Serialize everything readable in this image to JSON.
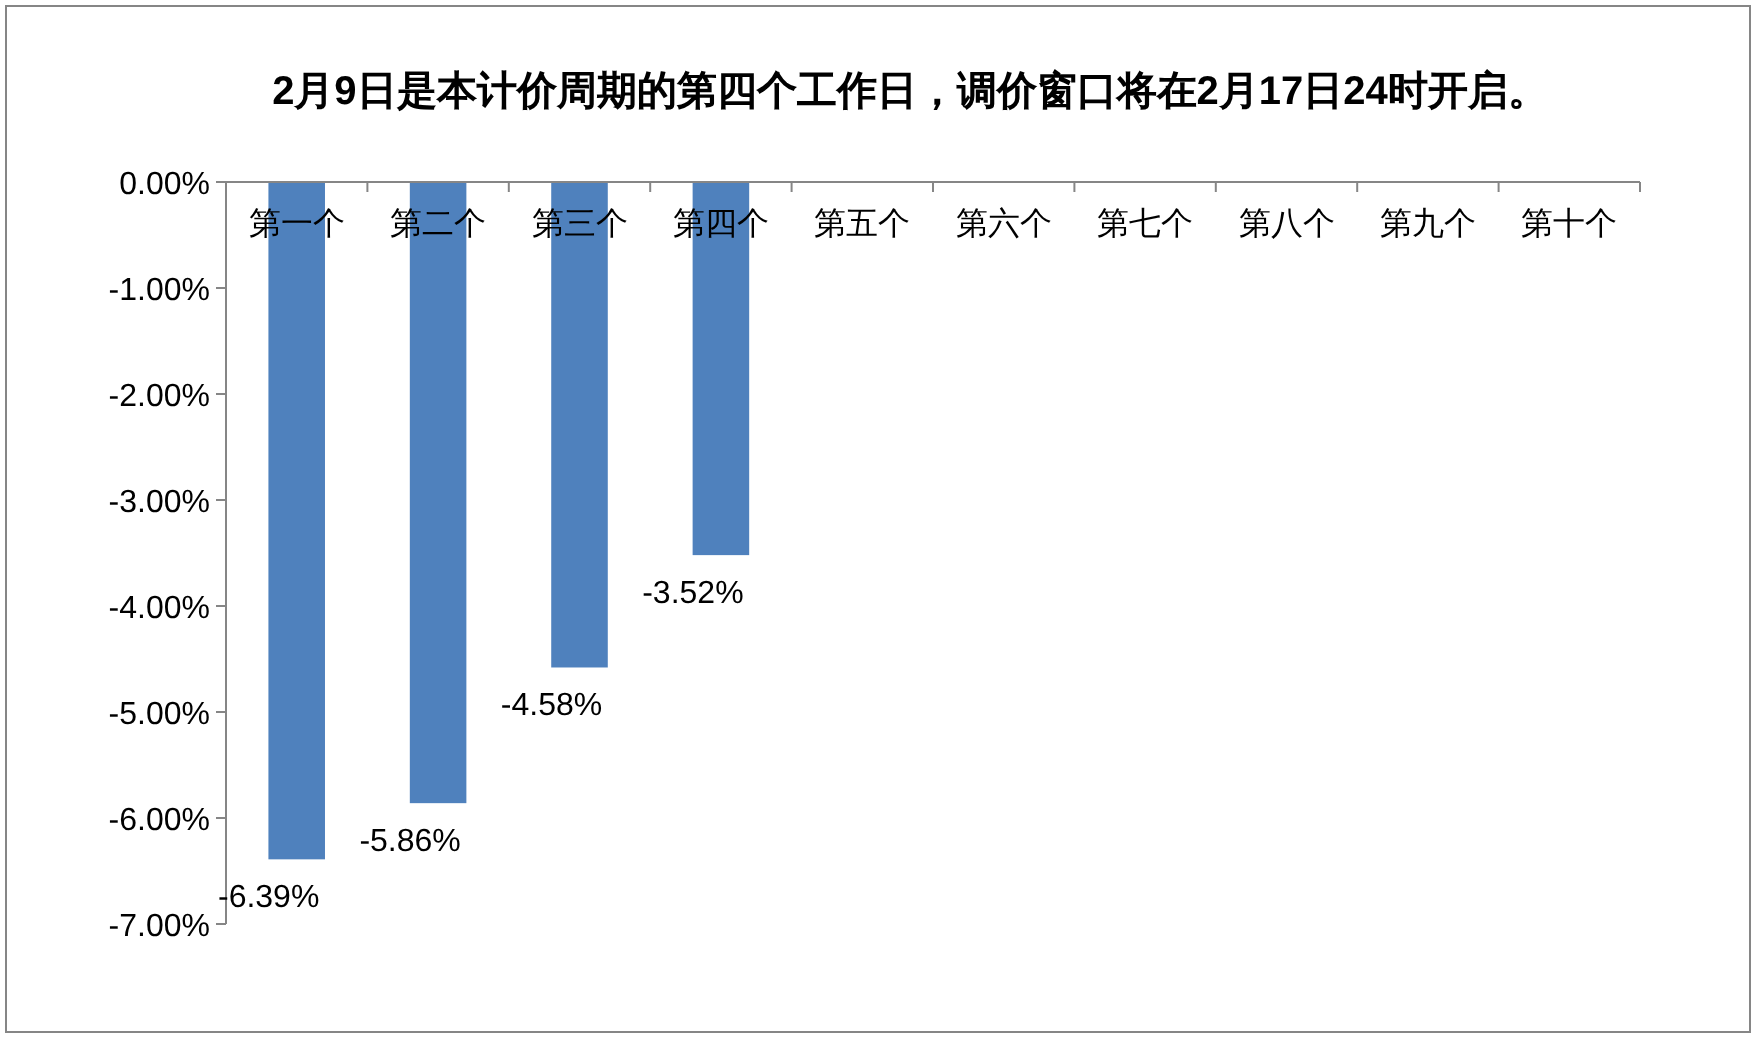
{
  "chart_data": {
    "type": "bar",
    "title": "2月9日是本计价周期的第四个工作日，调价窗口将在2月17日24时开启。",
    "categories": [
      "第一个",
      "第二个",
      "第三个",
      "第四个",
      "第五个",
      "第六个",
      "第七个",
      "第八个",
      "第九个",
      "第十个"
    ],
    "values": [
      -6.39,
      -5.86,
      -4.58,
      -3.52,
      null,
      null,
      null,
      null,
      null,
      null
    ],
    "value_labels": [
      "-6.39%",
      "-5.86%",
      "-4.58%",
      "-3.52%",
      null,
      null,
      null,
      null,
      null,
      null
    ],
    "color": "#4f81bd",
    "ylim": [
      -7,
      0
    ],
    "yticks": [
      {
        "value": 0,
        "label": "0.00%"
      },
      {
        "value": -1,
        "label": "-1.00%"
      },
      {
        "value": -2,
        "label": "-2.00%"
      },
      {
        "value": -3,
        "label": "-3.00%"
      },
      {
        "value": -4,
        "label": "-4.00%"
      },
      {
        "value": -5,
        "label": "-5.00%"
      },
      {
        "value": -6,
        "label": "-6.00%"
      },
      {
        "value": -7,
        "label": "-7.00%"
      }
    ]
  }
}
